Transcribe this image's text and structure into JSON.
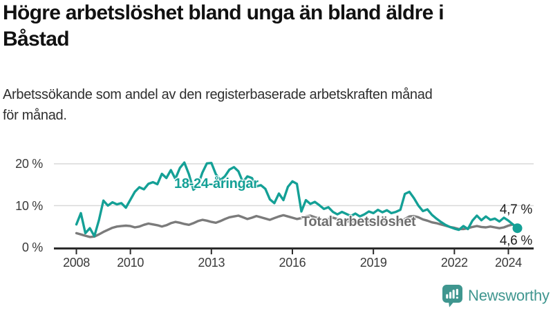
{
  "title": "Högre arbetslöshet bland unga än bland äldre i Båstad",
  "title_lines": [
    "Högre arbetslöshet bland unga än bland äldre i",
    "Båstad"
  ],
  "subtitle": "Arbetssökande som andel av den registerbaserade arbetskraften månad för månad.",
  "subtitle_lines": [
    "Arbetssökande som andel av den registerbaserade arbetskraften månad",
    "för månad."
  ],
  "chart_data": {
    "type": "line",
    "unit": "%",
    "title": "Högre arbetslöshet bland unga än bland äldre i Båstad",
    "xlabel": "",
    "ylabel": "Arbetssökande som andel av den registerbaserade arbetskraften",
    "grid": "horizontal",
    "legend_position": "labels-on-lines",
    "xlim": [
      2007.8,
      2025.0
    ],
    "ylim": [
      0,
      21
    ],
    "yticks": [
      {
        "value": 0,
        "label": "0 %"
      },
      {
        "value": 10,
        "label": "10 %"
      },
      {
        "value": 20,
        "label": "20 %"
      }
    ],
    "xticks": [
      {
        "value": 2008,
        "label": "2008"
      },
      {
        "value": 2010,
        "label": "2010"
      },
      {
        "value": 2013,
        "label": "2013"
      },
      {
        "value": 2016,
        "label": "2016"
      },
      {
        "value": 2019,
        "label": "2019"
      },
      {
        "value": 2022,
        "label": "2022"
      },
      {
        "value": 2024,
        "label": "2024"
      }
    ],
    "x_start": 2008.0,
    "x_step_months": 2,
    "x_end": 2024.33,
    "series": [
      {
        "name": "18-24-åringar",
        "color": "#14A096",
        "end_value": 4.6,
        "end_label": "4,6 %",
        "end_marker": "dot",
        "values": [
          5.5,
          8.2,
          3.4,
          4.6,
          2.7,
          6.5,
          11.2,
          10.0,
          10.8,
          10.3,
          10.6,
          9.5,
          11.4,
          13.3,
          14.4,
          13.9,
          15.2,
          15.6,
          15.1,
          17.6,
          16.6,
          18.5,
          16.4,
          19.0,
          20.3,
          17.5,
          13.8,
          14.8,
          17.9,
          20.1,
          20.2,
          17.5,
          16.1,
          17.0,
          18.6,
          19.2,
          18.2,
          15.6,
          17.0,
          16.6,
          14.6,
          14.9,
          14.0,
          11.5,
          10.6,
          12.9,
          11.3,
          14.5,
          15.8,
          15.2,
          8.6,
          11.3,
          10.4,
          10.9,
          10.1,
          9.2,
          9.6,
          8.5,
          7.9,
          8.5,
          8.0,
          7.5,
          8.1,
          7.4,
          7.9,
          8.6,
          8.2,
          9.0,
          8.4,
          8.9,
          8.2,
          8.5,
          9.0,
          12.8,
          13.3,
          11.8,
          10.0,
          8.7,
          9.1,
          7.8,
          6.9,
          6.1,
          5.4,
          4.9,
          4.5,
          4.2,
          5.1,
          4.4,
          6.4,
          7.6,
          6.5,
          7.4,
          6.6,
          6.9,
          6.2,
          7.1,
          6.4,
          5.5,
          4.6
        ]
      },
      {
        "name": "Total arbetslöshet",
        "color": "#7B7B7B",
        "end_value": 4.7,
        "end_label": "4,7 %",
        "end_marker": "none",
        "values": [
          3.4,
          3.1,
          2.8,
          2.5,
          2.6,
          3.1,
          3.7,
          4.2,
          4.7,
          5.0,
          5.1,
          5.2,
          5.1,
          4.8,
          5.0,
          5.4,
          5.7,
          5.5,
          5.3,
          5.0,
          5.3,
          5.8,
          6.1,
          5.9,
          5.6,
          5.4,
          5.8,
          6.3,
          6.6,
          6.4,
          6.1,
          5.9,
          6.3,
          6.8,
          7.2,
          7.4,
          7.6,
          7.2,
          6.8,
          7.1,
          7.5,
          7.2,
          6.9,
          6.6,
          7.0,
          7.4,
          7.7,
          7.4,
          7.1,
          6.8,
          7.0,
          7.4,
          7.6,
          7.2,
          6.9,
          6.6,
          6.8,
          7.1,
          6.8,
          6.5,
          6.3,
          6.1,
          6.3,
          6.6,
          6.4,
          6.1,
          6.0,
          5.9,
          6.1,
          6.4,
          6.2,
          6.1,
          6.2,
          6.8,
          7.4,
          7.5,
          7.2,
          6.7,
          6.4,
          6.0,
          5.8,
          5.5,
          5.2,
          4.9,
          4.7,
          4.4,
          4.4,
          4.6,
          4.9,
          5.1,
          4.9,
          4.8,
          5.0,
          4.8,
          4.6,
          4.8,
          5.2,
          5.5,
          4.7
        ]
      }
    ]
  },
  "branding": {
    "name": "Newsworthy",
    "icon": "newsworthy-speech-bubble-bar-chart-icon",
    "color": "#3F968F"
  },
  "colors": {
    "background": "#FFFFFF",
    "title": "#111111",
    "subtitle": "#2E2E2E",
    "gridline": "#D8D8D8",
    "axis": "#2B2B2B",
    "tick_label": "#3A3A3A",
    "end_label": "#1F1F1F",
    "young_series": "#14A096",
    "total_series": "#7B7B7B"
  }
}
